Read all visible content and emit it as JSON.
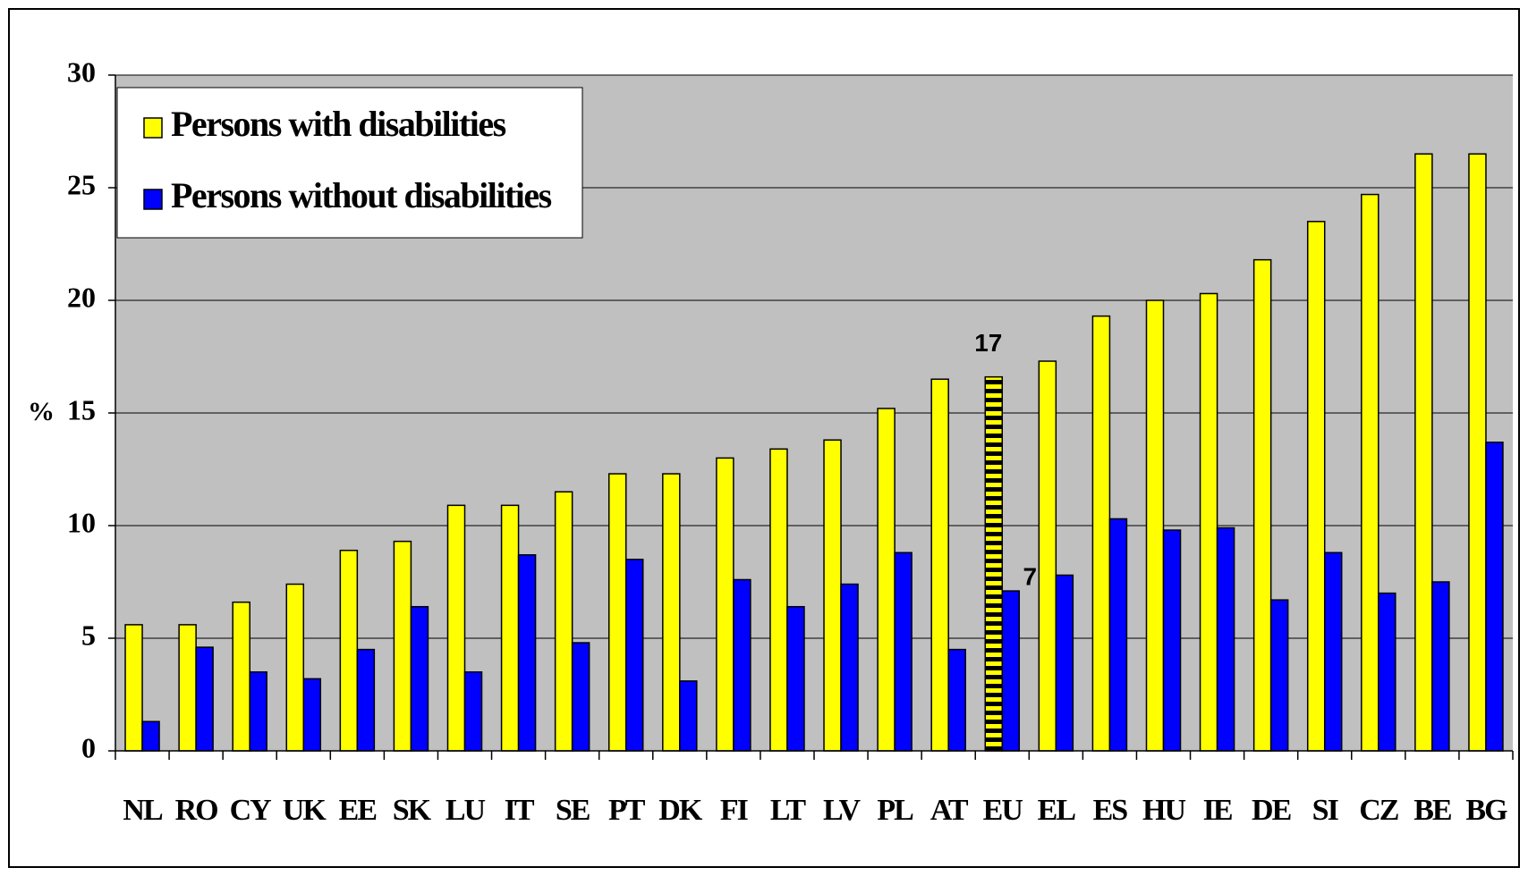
{
  "chart_data": {
    "type": "bar",
    "y_label": "%",
    "categories": [
      "NL",
      "RO",
      "CY",
      "UK",
      "EE",
      "SK",
      "LU",
      "IT",
      "SE",
      "PT",
      "DK",
      "FI",
      "LT",
      "LV",
      "PL",
      "AT",
      "EU",
      "EL",
      "ES",
      "HU",
      "IE",
      "DE",
      "SI",
      "CZ",
      "BE",
      "BG"
    ],
    "series": [
      {
        "name": "Persons with disabilities",
        "color": "#ffff00",
        "values": [
          5.6,
          5.6,
          6.6,
          7.4,
          8.9,
          9.3,
          10.9,
          10.9,
          11.5,
          12.3,
          12.3,
          13.0,
          13.4,
          13.8,
          15.2,
          16.5,
          16.6,
          17.3,
          19.3,
          20.0,
          20.3,
          21.8,
          23.5,
          24.7,
          26.5,
          26.5
        ],
        "value_labels": [
          null,
          null,
          null,
          null,
          null,
          null,
          null,
          null,
          null,
          null,
          null,
          null,
          null,
          null,
          null,
          null,
          "17",
          null,
          null,
          null,
          null,
          null,
          null,
          null,
          null,
          null
        ]
      },
      {
        "name": "Persons without disabilities",
        "color": "#0000ff",
        "values": [
          1.3,
          4.6,
          3.5,
          3.2,
          4.5,
          6.4,
          3.5,
          8.7,
          4.8,
          8.5,
          3.1,
          7.6,
          6.4,
          7.4,
          8.8,
          4.5,
          7.1,
          7.8,
          10.3,
          9.8,
          9.9,
          6.7,
          8.8,
          7.0,
          7.5,
          13.7
        ],
        "value_labels": [
          null,
          null,
          null,
          null,
          null,
          null,
          null,
          null,
          null,
          null,
          null,
          null,
          null,
          null,
          null,
          null,
          "7",
          null,
          null,
          null,
          null,
          null,
          null,
          null,
          null,
          null
        ]
      }
    ],
    "highlight": "EU",
    "ylim": [
      0,
      30
    ],
    "yticks": [
      0,
      5,
      10,
      15,
      20,
      25,
      30
    ],
    "grid": true,
    "plot_background": "#c0c0c0",
    "legend": "top-left"
  }
}
